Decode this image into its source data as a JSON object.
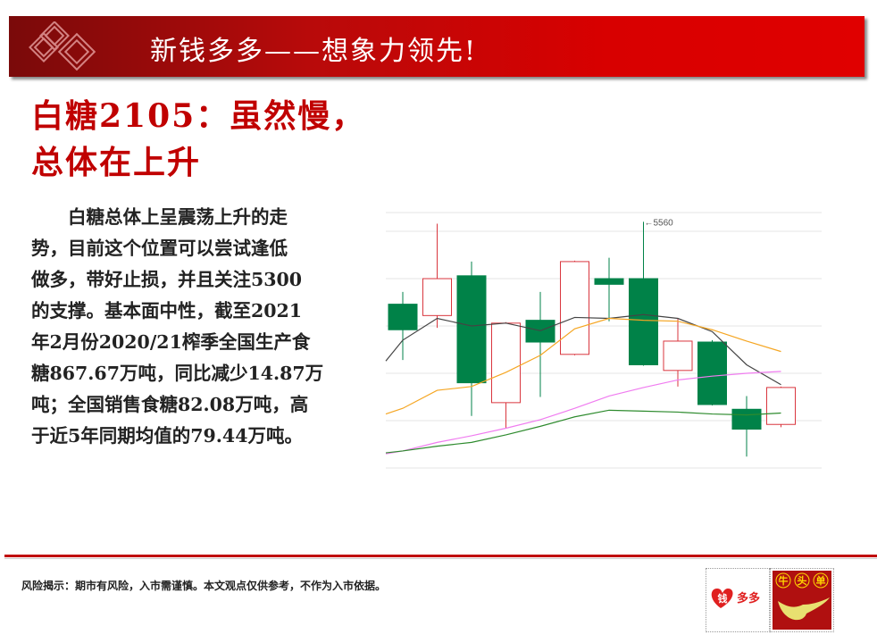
{
  "header": {
    "title": "新钱多多——想象力领先!"
  },
  "page_title": {
    "line1": "白糖2105：虽然慢，",
    "line2": "总体在上升"
  },
  "body": {
    "lines": [
      "　　白糖总体上呈震荡上升的走",
      "势，目前这个位置可以尝试逢低",
      "做多，带好止损，并且关注5300",
      "的支撑。基本面中性，截至2021",
      "年2月份2020/21榨季全国生产食",
      "糖867.67万吨，同比减少14.87万",
      "吨；全国销售食糖82.08万吨，高",
      "于近5年同期均值的79.44万吨。"
    ]
  },
  "footer": {
    "risk_notice": "风险揭示：期市有风险，入市需谨慎。本文观点仅供参考，不作为入市依据。",
    "logo_left_text": "钱多多",
    "logo_right_text": "牛头单"
  },
  "colors": {
    "brand_red": "#c00000",
    "up": "#d9363e",
    "down": "#008248",
    "ma1": "#444444",
    "ma2": "#f5a623",
    "ma3": "#f07cf0",
    "ma4": "#2e8b2e"
  },
  "chart_data": {
    "type": "candlestick",
    "ylim": [
      5280,
      5570
    ],
    "gridlines": [
      5300,
      5350,
      5400,
      5450,
      5500,
      5550
    ],
    "annotation": {
      "text": "←5560",
      "value": 5560,
      "candle_index": 7
    },
    "candles": [
      {
        "open": 5473,
        "close": 5446,
        "high": 5486,
        "low": 5414
      },
      {
        "open": 5461,
        "close": 5500,
        "high": 5558,
        "low": 5448
      },
      {
        "open": 5503,
        "close": 5390,
        "high": 5518,
        "low": 5355
      },
      {
        "open": 5369,
        "close": 5453,
        "high": 5454,
        "low": 5342
      },
      {
        "open": 5456,
        "close": 5433,
        "high": 5486,
        "low": 5375
      },
      {
        "open": 5420,
        "close": 5518,
        "high": 5519,
        "low": 5419
      },
      {
        "open": 5500,
        "close": 5494,
        "high": 5522,
        "low": 5455
      },
      {
        "open": 5500,
        "close": 5409,
        "high": 5560,
        "low": 5408
      },
      {
        "open": 5403,
        "close": 5434,
        "high": 5458,
        "low": 5386
      },
      {
        "open": 5433,
        "close": 5367,
        "high": 5435,
        "low": 5366
      },
      {
        "open": 5362,
        "close": 5341,
        "high": 5376,
        "low": 5312
      },
      {
        "open": 5346,
        "close": 5385,
        "high": 5386,
        "low": 5343
      }
    ],
    "moving_averages": [
      {
        "color": "#444444",
        "start": 5413,
        "values": [
          5435,
          5458,
          5450,
          5453,
          5445,
          5459,
          5458,
          5462,
          5458,
          5444,
          5409,
          5388
        ]
      },
      {
        "color": "#f5a623",
        "start": 5357,
        "values": [
          5363,
          5382,
          5386,
          5401,
          5419,
          5447,
          5458,
          5456,
          5455,
          5446,
          5434,
          5423
        ]
      },
      {
        "color": "#f07cf0",
        "start": 5315,
        "values": [
          5318,
          5327,
          5334,
          5342,
          5351,
          5363,
          5376,
          5385,
          5393,
          5397,
          5400,
          5402
        ]
      },
      {
        "color": "#2e8b2e",
        "start": 5316,
        "values": [
          5318,
          5323,
          5327,
          5335,
          5344,
          5354,
          5361,
          5360,
          5359,
          5357,
          5356,
          5358
        ]
      }
    ]
  }
}
